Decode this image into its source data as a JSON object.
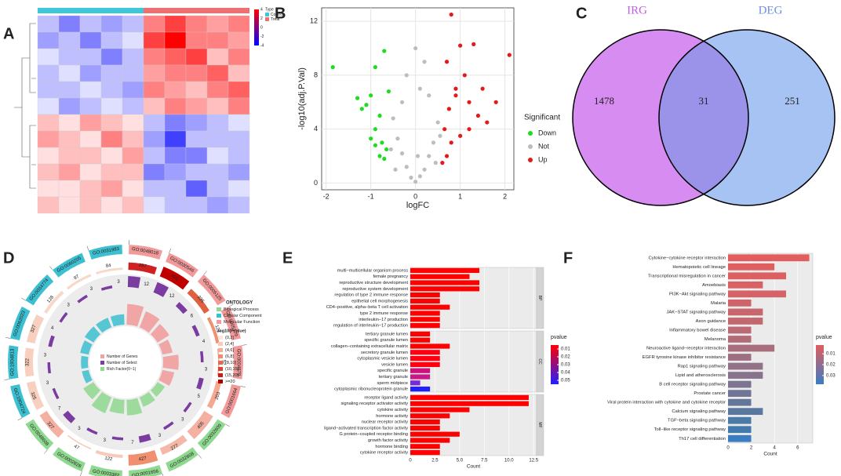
{
  "chart_data": [
    {
      "type": "heatmap",
      "panel_label": "A",
      "legend_title": "Type",
      "groups": [
        "Control",
        "Treat"
      ],
      "group_colors": [
        "#3cc8d8",
        "#f07070"
      ],
      "colors": {
        "low": "#0000ff",
        "mid": "#ffffff",
        "high": "#ff0000"
      },
      "zlim": [
        -4,
        4
      ],
      "zticks": [
        4,
        2,
        0,
        -2,
        -4
      ],
      "matrix": [
        [
          -1,
          -2,
          -1,
          -1.5,
          -1,
          2,
          3,
          2,
          1.5,
          2
        ],
        [
          -1.5,
          -1,
          -2,
          -1,
          -0.5,
          3,
          4,
          2,
          2,
          1.5
        ],
        [
          -0.5,
          -1,
          -1,
          -2,
          -1,
          2,
          2.5,
          3,
          1,
          2
        ],
        [
          -1,
          -0.5,
          -1.5,
          -1,
          -1,
          1.5,
          2,
          2,
          2.5,
          1
        ],
        [
          -1,
          -1,
          -0.5,
          -1,
          -1.5,
          2,
          1.5,
          1,
          2,
          2.5
        ],
        [
          -0.5,
          -1.5,
          -1,
          -0.5,
          -1,
          1,
          2,
          1.5,
          1,
          2
        ],
        [
          1,
          0.5,
          1.5,
          1,
          0.5,
          -1,
          -2,
          -1.5,
          -1,
          -0.5
        ],
        [
          1.5,
          1,
          0.5,
          2,
          1,
          -1.5,
          -3,
          -1,
          -1,
          -1
        ],
        [
          0.5,
          1,
          1,
          0.5,
          1.5,
          -1,
          -2,
          -2,
          -0.5,
          -1
        ],
        [
          1,
          1.5,
          0.5,
          1,
          1,
          -2,
          -1.5,
          -1,
          -1,
          -1.5
        ],
        [
          0.5,
          0.5,
          1,
          1.5,
          0.5,
          -1,
          -1,
          -2.5,
          -1,
          -0.5
        ],
        [
          1,
          0.5,
          1,
          0.5,
          1,
          -0.5,
          -1,
          -1,
          -1.5,
          -1
        ]
      ]
    },
    {
      "type": "scatter",
      "panel_label": "B",
      "x_label": "logFC",
      "y_label": "-log10(adj.P.Val)",
      "legend_title": "Significant",
      "xlim": [
        -2.1,
        2.2
      ],
      "ylim": [
        -0.5,
        13
      ],
      "xticks": [
        -2,
        -1,
        0,
        1,
        2
      ],
      "yticks": [
        0,
        4,
        8,
        12
      ],
      "grid": true,
      "series": [
        {
          "name": "Down",
          "color": "#1fdc1f",
          "x": [
            -1.85,
            -0.9,
            -0.7,
            -1.0,
            -1.2,
            -0.8,
            -0.6,
            -1.3,
            -0.9,
            -0.75,
            -0.8,
            -0.65,
            -1.0,
            -0.7,
            -0.9,
            -1.1
          ],
          "values": [
            8.6,
            8.6,
            9.8,
            6.5,
            5.5,
            5,
            6.8,
            6.3,
            4,
            3,
            2,
            2.5,
            3.3,
            1.8,
            2.8,
            5.8
          ]
        },
        {
          "name": "Not",
          "color": "#bdbdbd",
          "x": [
            0,
            0.1,
            -0.1,
            0.2,
            -0.2,
            0.3,
            -0.3,
            0.4,
            -0.4,
            0.5,
            -0.5,
            -0.3,
            0.3,
            -0.2,
            0.2,
            0,
            0.45,
            -0.45,
            0.1,
            -0.55,
            0.55,
            0.05
          ],
          "values": [
            0.1,
            0.5,
            0.4,
            1,
            1.2,
            2,
            2.2,
            3,
            3.3,
            4.5,
            4.8,
            6,
            6.5,
            8,
            9,
            10,
            1.5,
            1,
            7,
            2.5,
            3.5,
            2
          ]
        },
        {
          "name": "Up",
          "color": "#e31a1c",
          "x": [
            0.8,
            2.1,
            1.0,
            1.3,
            0.7,
            1.1,
            0.9,
            1.5,
            1.2,
            0.75,
            1.4,
            0.65,
            1.0,
            0.8,
            1.6,
            0.7,
            0.6,
            1.2,
            0.9,
            1.8
          ],
          "values": [
            12.5,
            9.5,
            10.2,
            10.3,
            9,
            8,
            7,
            7,
            6,
            5.5,
            5,
            4,
            3.5,
            3,
            4.5,
            2,
            1.5,
            4,
            6.5,
            6
          ]
        }
      ]
    },
    {
      "type": "venn",
      "panel_label": "C",
      "sets": [
        {
          "name": "IRG",
          "color": "#d68cf0"
        },
        {
          "name": "DEG",
          "color": "#a7c3f4"
        }
      ],
      "overlap_color": "#9b93ea",
      "values": [
        1478,
        31,
        251
      ]
    },
    {
      "type": "circos",
      "panel_label": "D",
      "legend_title": "ONTOLOGY",
      "ontologies": [
        {
          "name": "Biological Process",
          "color": "#8fd88f"
        },
        {
          "name": "Cellular Component",
          "color": "#3cbfd0"
        },
        {
          "name": "Molecular Function",
          "color": "#f29a9a"
        }
      ],
      "pvalue_title": "-log10(Pvalue)",
      "pvalue_bins": [
        "(0,2]",
        "(2,4]",
        "(4,6]",
        "(6,8]",
        "(8,10]",
        "(10,15]",
        "(15,20]",
        ">=20"
      ],
      "pvalue_colors": [
        "#fde4dc",
        "#f9c8b8",
        "#f4ac94",
        "#ee8a70",
        "#e6684e",
        "#d84430",
        "#c42018",
        "#a80000"
      ],
      "inner_legend": [
        "Number of Genes",
        "Number of Select",
        "Rich Factor(0~1)"
      ],
      "inner_legend_colors": [
        "#f4a0a0",
        "#7a3ca0",
        "#8fd88f"
      ],
      "terms": [
        {
          "id": "GO:0048018",
          "ontology": 2,
          "genes": 287,
          "select": 12,
          "rich": 0.6,
          "color": "#d02020"
        },
        {
          "id": "GO:0030546",
          "ontology": 2,
          "genes": 405,
          "select": 12,
          "rich": 0.5,
          "color": "#c00000"
        },
        {
          "id": "GO:0005125",
          "ontology": 2,
          "genes": 235,
          "select": 6,
          "rich": 0.4,
          "color": "#e06040"
        },
        {
          "id": "GO:0005179",
          "ontology": 2,
          "genes": 122,
          "select": 4,
          "rich": 0.3,
          "color": "#f09070"
        },
        {
          "id": "GO:0004879",
          "ontology": 2,
          "genes": 52,
          "select": 3,
          "rich": 0.45,
          "color": "#f4b0a0"
        },
        {
          "id": "GO:0001664",
          "ontology": 2,
          "genes": 203,
          "select": 5,
          "rich": 0.35,
          "color": "#f4a890"
        },
        {
          "id": "GO:0032609",
          "ontology": 0,
          "genes": 405,
          "select": 3,
          "rich": 0.25,
          "color": "#f4b0a0"
        },
        {
          "id": "GO:0032608",
          "ontology": 0,
          "genes": 277,
          "select": 3,
          "rich": 0.3,
          "color": "#f4b8a8"
        },
        {
          "id": "GO:0001656",
          "ontology": 0,
          "genes": 427,
          "select": 7,
          "rich": 0.45,
          "color": "#f09070"
        },
        {
          "id": "GO:0003382",
          "ontology": 0,
          "genes": 122,
          "select": 3,
          "rich": 0.4,
          "color": "#f8c8b8"
        },
        {
          "id": "GO:0002828",
          "ontology": 0,
          "genes": 47,
          "select": 3,
          "rich": 0.5,
          "color": "#f8c8b8"
        },
        {
          "id": "GO:0048608",
          "ontology": 0,
          "genes": 327,
          "select": 7,
          "rich": 0.35,
          "color": "#f4b0a0"
        },
        {
          "id": "GO:1904724",
          "ontology": 1,
          "genes": 325,
          "select": 3,
          "rich": 0.2,
          "color": "#f8d0c0"
        },
        {
          "id": "GO:1904813",
          "ontology": 1,
          "genes": 322,
          "select": 3,
          "rich": 0.2,
          "color": "#f8d0c0"
        },
        {
          "id": "GO:0062023",
          "ontology": 1,
          "genes": 327,
          "select": 4,
          "rich": 0.25,
          "color": "#f8d0c0"
        },
        {
          "id": "GO:0034774",
          "ontology": 1,
          "genes": 128,
          "select": 3,
          "rich": 0.3,
          "color": "#f8d8c8"
        },
        {
          "id": "GO:0060205",
          "ontology": 1,
          "genes": 97,
          "select": 3,
          "rich": 0.3,
          "color": "#f8d8c8"
        },
        {
          "id": "GO:0031983",
          "ontology": 1,
          "genes": 84,
          "select": 3,
          "rich": 0.3,
          "color": "#f8d8c8"
        }
      ]
    },
    {
      "type": "facet_bar",
      "panel_label": "E",
      "x_label": "Count",
      "xlim": [
        0,
        12.8
      ],
      "xticks": [
        0,
        {
          "value": 2.5,
          "label": "2.5"
        },
        {
          "value": 5,
          "label": "5.0"
        },
        {
          "value": 7.5,
          "label": "7.5"
        },
        {
          "value": 10,
          "label": "10.0"
        },
        {
          "value": 12.5,
          "label": "12.5"
        }
      ],
      "legend_title": "pvalue",
      "legend_lim": [
        0.005,
        0.055
      ],
      "legend_ticks": [
        0.01,
        0.02,
        0.03,
        0.04,
        0.05
      ],
      "legend_colors": [
        "#ff0000",
        "#2020ff"
      ],
      "facets": [
        {
          "name": "BP",
          "categories": [
            "multi−multicellular organism process",
            "female pregnancy",
            "reproductive structure development",
            "reproductive system development",
            "regulation of type 2 immune response",
            "epithelial cell morphogenesis",
            "CD4−positive, alpha−beta T cell activation",
            "type 2 immune response",
            "interleukin−17 production",
            "regulation of interleukin−17 production"
          ],
          "values": [
            7,
            6,
            7,
            7,
            3,
            3,
            4,
            3,
            3,
            3
          ],
          "colors": [
            "#ff0000",
            "#ff0000",
            "#ff0000",
            "#ff0000",
            "#ff0000",
            "#ff0000",
            "#ff0000",
            "#ff0000",
            "#ff0000",
            "#ff0000"
          ]
        },
        {
          "name": "CC",
          "categories": [
            "tertiary granule lumen",
            "specific granule lumen",
            "collagen−containing extracellular matrix",
            "secretory granule lumen",
            "cytoplasmic vesicle lumen",
            "vesicle lumen",
            "specific granule",
            "tertiary granule",
            "sperm midpiece",
            "cytoplasmic ribonucleoprotein granule"
          ],
          "values": [
            2,
            2,
            4,
            3,
            3,
            3,
            2,
            2,
            1,
            2
          ],
          "colors": [
            "#ff0000",
            "#ff0000",
            "#ff0000",
            "#ff0010",
            "#ff0010",
            "#ff0010",
            "#d0107a",
            "#c81888",
            "#7a28d8",
            "#2020ff"
          ]
        },
        {
          "name": "MF",
          "categories": [
            "receptor ligand activity",
            "signaling receptor activator activity",
            "cytokine activity",
            "hormone activity",
            "nuclear receptor activity",
            "ligand−activated transcription factor activity",
            "G protein−coupled receptor binding",
            "growth factor activity",
            "hormone binding",
            "cytokine receptor activity"
          ],
          "values": [
            12,
            12,
            6,
            4,
            3,
            3,
            5,
            4,
            3,
            3
          ],
          "colors": [
            "#ff0000",
            "#ff0000",
            "#ff0000",
            "#ff0000",
            "#ff0000",
            "#ff0000",
            "#ff0000",
            "#ff0000",
            "#ff0000",
            "#ff0000"
          ]
        }
      ]
    },
    {
      "type": "hbar",
      "panel_label": "F",
      "x_label": "Count",
      "xlim": [
        0,
        7.3
      ],
      "xticks": [
        0,
        2,
        4,
        6
      ],
      "legend_title": "pvalue",
      "legend_lim": [
        0.002,
        0.038
      ],
      "legend_ticks": [
        0.01,
        0.02,
        0.03
      ],
      "legend_colors": [
        "#e35d5d",
        "#3a7dc0"
      ],
      "categories": [
        "Cytokine−cytokine receptor interaction",
        "Hematopoietic cell lineage",
        "Transcriptional misregulation in cancer",
        "Amoebiasis",
        "PI3K−Akt signaling pathway",
        "Malaria",
        "JAK−STAT signaling pathway",
        "Axon guidance",
        "Inflammatory bowel disease",
        "Melanoma",
        "Neuroactive ligand−receptor interaction",
        "EGFR tyrosine kinase inhibitor resistance",
        "Rap1 signaling pathway",
        "Lipid and atherosclerosis",
        "B cell receptor signaling pathway",
        "Prostate cancer",
        "Viral protein interaction with cytokine and cytokine receptor",
        "Calcium signaling pathway",
        "TGF−beta signaling pathway",
        "Toll−like receptor signaling pathway",
        "Th17 cell differentiation"
      ],
      "values": [
        7,
        4,
        5,
        3,
        5,
        2,
        3,
        3,
        2,
        2,
        4,
        2,
        3,
        3,
        2,
        2,
        2,
        3,
        2,
        2,
        2
      ],
      "colors": [
        "#e15d5e",
        "#df5f60",
        "#dc6062",
        "#d86164",
        "#d46266",
        "#cf6468",
        "#c9666c",
        "#c3686f",
        "#bb6a73",
        "#b26c78",
        "#a86e7d",
        "#9e6f82",
        "#937187",
        "#88728c",
        "#7c7491",
        "#707596",
        "#64779b",
        "#5878a0",
        "#4c7aa6",
        "#427bab",
        "#3a7dc0"
      ]
    }
  ]
}
